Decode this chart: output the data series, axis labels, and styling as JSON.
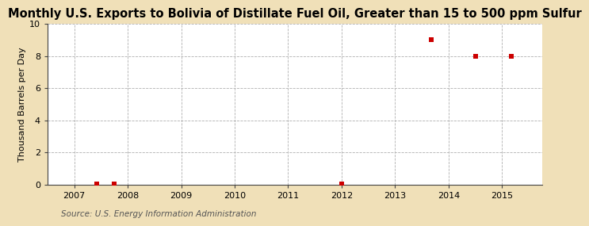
{
  "title": "Monthly U.S. Exports to Bolivia of Distillate Fuel Oil, Greater than 15 to 500 ppm Sulfur",
  "ylabel": "Thousand Barrels per Day",
  "source": "Source: U.S. Energy Information Administration",
  "background_color": "#f0e0b8",
  "plot_background_color": "#ffffff",
  "data_points_x": [
    2007.42,
    2007.75,
    2012.0,
    2013.67,
    2014.5,
    2015.17
  ],
  "data_points_y": [
    0.05,
    0.05,
    0.05,
    9.0,
    8.0,
    8.0
  ],
  "marker_color": "#cc0000",
  "marker_size": 5,
  "xlim": [
    2006.5,
    2015.75
  ],
  "ylim": [
    0,
    10
  ],
  "yticks": [
    0,
    2,
    4,
    6,
    8,
    10
  ],
  "xticks": [
    2007,
    2008,
    2009,
    2010,
    2011,
    2012,
    2013,
    2014,
    2015
  ],
  "grid_color": "#b0b0b0",
  "grid_linestyle": "--",
  "grid_linewidth": 0.6,
  "title_fontsize": 10.5,
  "axis_label_fontsize": 8,
  "tick_fontsize": 8,
  "source_fontsize": 7.5
}
